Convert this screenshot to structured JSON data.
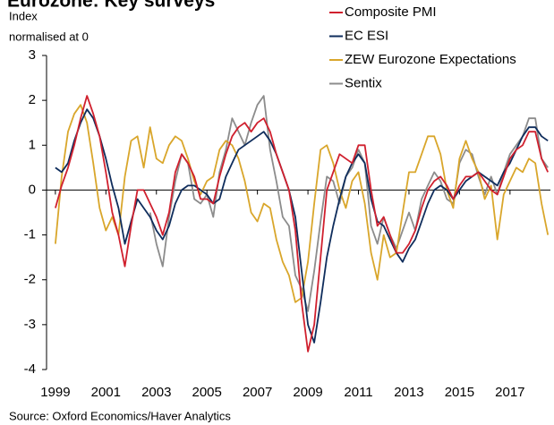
{
  "chart_data": {
    "type": "line",
    "title": "Eurozone: Key surveys",
    "ylabel": [
      "Index",
      "normalised at 0"
    ],
    "source": "Source: Oxford Economics/Haver Analytics",
    "legend": "upper right",
    "xlim": [
      1998.65,
      2018.6
    ],
    "xticks": [
      1999,
      2001,
      2003,
      2005,
      2007,
      2009,
      2011,
      2013,
      2015,
      2017
    ],
    "ylim": [
      -4,
      3
    ],
    "yticks": [
      -4,
      -3,
      -2,
      -1,
      0,
      1,
      2,
      3
    ],
    "x": [
      1999,
      1999.25,
      1999.5,
      1999.75,
      2000,
      2000.25,
      2000.5,
      2000.75,
      2001,
      2001.25,
      2001.5,
      2001.75,
      2002,
      2002.25,
      2002.5,
      2002.75,
      2003,
      2003.25,
      2003.5,
      2003.75,
      2004,
      2004.25,
      2004.5,
      2004.75,
      2005,
      2005.25,
      2005.5,
      2005.75,
      2006,
      2006.25,
      2006.5,
      2006.75,
      2007,
      2007.25,
      2007.5,
      2007.75,
      2008,
      2008.25,
      2008.5,
      2008.75,
      2009,
      2009.25,
      2009.5,
      2009.75,
      2010,
      2010.25,
      2010.5,
      2010.75,
      2011,
      2011.25,
      2011.5,
      2011.75,
      2012,
      2012.25,
      2012.5,
      2012.75,
      2013,
      2013.25,
      2013.5,
      2013.75,
      2014,
      2014.25,
      2014.5,
      2014.75,
      2015,
      2015.25,
      2015.5,
      2015.75,
      2016,
      2016.25,
      2016.5,
      2016.75,
      2017,
      2017.25,
      2017.5,
      2017.75,
      2018,
      2018.25,
      2018.5
    ],
    "series": [
      {
        "name": "Composite PMI",
        "color": "#d0202e",
        "values": [
          -0.4,
          0.1,
          0.5,
          1.0,
          1.6,
          2.1,
          1.7,
          1.2,
          0.4,
          -0.5,
          -1.0,
          -1.7,
          -0.8,
          0.0,
          0.0,
          -0.3,
          -0.6,
          -1.0,
          -0.5,
          0.4,
          0.8,
          0.6,
          0.3,
          -0.2,
          -0.2,
          -0.3,
          0.3,
          0.8,
          1.2,
          1.4,
          1.5,
          1.3,
          1.5,
          1.6,
          1.3,
          0.8,
          0.4,
          0.0,
          -0.9,
          -2.5,
          -3.6,
          -3.0,
          -1.5,
          0.0,
          0.4,
          0.8,
          0.7,
          0.6,
          1.0,
          1.0,
          0.0,
          -0.8,
          -0.6,
          -1.0,
          -1.4,
          -1.4,
          -1.2,
          -0.9,
          -0.4,
          0.0,
          0.2,
          0.3,
          0.1,
          -0.2,
          0.1,
          0.3,
          0.3,
          0.4,
          0.2,
          0.0,
          -0.1,
          0.3,
          0.7,
          0.9,
          1.0,
          1.3,
          1.3,
          0.7,
          0.4
        ]
      },
      {
        "name": "EC ESI",
        "color": "#0f2d5c",
        "values": [
          0.5,
          0.4,
          0.6,
          1.1,
          1.5,
          1.8,
          1.6,
          1.2,
          0.7,
          0.1,
          -0.4,
          -1.2,
          -0.7,
          -0.2,
          -0.4,
          -0.6,
          -0.9,
          -1.1,
          -0.8,
          -0.3,
          0.0,
          0.1,
          0.1,
          0.0,
          -0.1,
          -0.3,
          -0.2,
          0.3,
          0.6,
          0.9,
          1.0,
          1.1,
          1.2,
          1.3,
          1.1,
          0.8,
          0.4,
          0.0,
          -0.6,
          -1.8,
          -3.0,
          -3.4,
          -2.5,
          -1.5,
          -0.8,
          -0.2,
          0.3,
          0.6,
          0.8,
          0.6,
          -0.2,
          -0.7,
          -0.8,
          -1.1,
          -1.4,
          -1.6,
          -1.3,
          -1.1,
          -0.7,
          -0.3,
          0.0,
          0.1,
          0.0,
          -0.2,
          0.0,
          0.2,
          0.3,
          0.4,
          0.3,
          0.2,
          0.1,
          0.4,
          0.6,
          0.9,
          1.2,
          1.4,
          1.4,
          1.2,
          1.1
        ]
      },
      {
        "name": "ZEW Eurozone Expectations",
        "color": "#d9a62b",
        "values": [
          -1.2,
          0.3,
          1.3,
          1.7,
          1.9,
          1.5,
          0.6,
          -0.4,
          -0.9,
          -0.6,
          -1.0,
          0.3,
          1.1,
          1.2,
          0.5,
          1.4,
          0.7,
          0.6,
          1.0,
          1.2,
          1.1,
          0.7,
          0.2,
          -0.1,
          0.2,
          0.3,
          0.9,
          1.1,
          1.0,
          0.7,
          0.2,
          -0.5,
          -0.7,
          -0.3,
          -0.4,
          -1.1,
          -1.6,
          -1.9,
          -2.5,
          -2.4,
          -1.6,
          -0.3,
          0.9,
          1.0,
          0.6,
          0.0,
          -0.4,
          0.2,
          0.4,
          -0.3,
          -1.4,
          -2.0,
          -1.0,
          -1.5,
          -1.4,
          -0.5,
          0.4,
          0.4,
          0.8,
          1.2,
          1.2,
          0.8,
          0.0,
          -0.4,
          0.7,
          1.1,
          0.7,
          0.4,
          -0.2,
          0.1,
          -1.1,
          -0.1,
          0.2,
          0.5,
          0.4,
          0.7,
          0.6,
          -0.3,
          -1.0
        ]
      },
      {
        "name": "Sentix",
        "color": "#8c8c8c",
        "values": [
          null,
          null,
          null,
          null,
          null,
          null,
          null,
          null,
          null,
          null,
          null,
          null,
          null,
          null,
          null,
          -0.5,
          -1.2,
          -1.7,
          -0.6,
          0.2,
          0.8,
          0.6,
          -0.2,
          -0.3,
          -0.1,
          -0.6,
          0.4,
          0.9,
          1.6,
          1.3,
          1.0,
          1.5,
          1.9,
          2.1,
          0.9,
          0.2,
          -0.6,
          -0.8,
          -1.9,
          -2.2,
          -2.7,
          -1.8,
          -0.7,
          0.3,
          0.2,
          -0.3,
          0.3,
          0.5,
          0.9,
          0.6,
          -0.8,
          -1.2,
          -0.6,
          -1.0,
          -1.3,
          -0.9,
          -0.5,
          -0.9,
          -0.2,
          0.1,
          0.4,
          0.2,
          -0.2,
          -0.3,
          0.6,
          0.9,
          0.8,
          0.3,
          -0.1,
          0.3,
          -0.1,
          0.4,
          0.8,
          1.0,
          1.2,
          1.6,
          1.6,
          0.7,
          0.5
        ]
      }
    ]
  }
}
